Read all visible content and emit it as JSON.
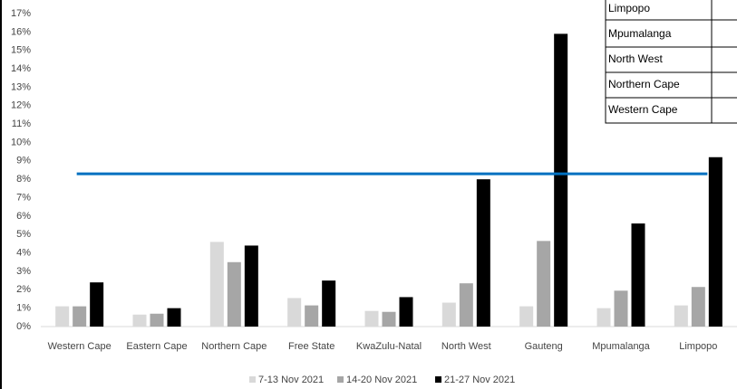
{
  "chart_data": {
    "type": "bar",
    "categories": [
      "Western Cape",
      "Eastern Cape",
      "Northern Cape",
      "Free State",
      "KwaZulu-Natal",
      "North West",
      "Gauteng",
      "Mpumalanga",
      "Limpopo"
    ],
    "series": [
      {
        "name": "7-13 Nov 2021",
        "color": "#d9d9d9",
        "values": [
          1.1,
          0.65,
          4.6,
          1.55,
          0.85,
          1.3,
          1.1,
          1.0,
          1.15
        ]
      },
      {
        "name": "14-20 Nov 2021",
        "color": "#a6a6a6",
        "values": [
          1.1,
          0.7,
          3.5,
          1.15,
          0.8,
          2.35,
          4.65,
          1.95,
          2.15
        ]
      },
      {
        "name": "21-27 Nov 2021",
        "color": "#000000",
        "values": [
          2.4,
          1.0,
          4.4,
          2.5,
          1.6,
          8.0,
          15.9,
          5.6,
          9.2
        ]
      }
    ],
    "reference_line": {
      "value": 8.3,
      "color": "#0070c0"
    },
    "ylim": [
      0,
      17
    ],
    "yticks": [
      {
        "value": 0,
        "label": "0%"
      },
      {
        "value": 1,
        "label": "1%"
      },
      {
        "value": 2,
        "label": "2%"
      },
      {
        "value": 3,
        "label": "3%"
      },
      {
        "value": 4,
        "label": "4%"
      },
      {
        "value": 5,
        "label": "5%"
      },
      {
        "value": 6,
        "label": "6%"
      },
      {
        "value": 7,
        "label": "7%"
      },
      {
        "value": 8,
        "label": "8%"
      },
      {
        "value": 9,
        "label": "9%"
      },
      {
        "value": 10,
        "label": "10%"
      },
      {
        "value": 11,
        "label": "11%"
      },
      {
        "value": 12,
        "label": "12%"
      },
      {
        "value": 13,
        "label": "13%"
      },
      {
        "value": 14,
        "label": "14%"
      },
      {
        "value": 15,
        "label": "15%"
      },
      {
        "value": 16,
        "label": "16%"
      },
      {
        "value": 17,
        "label": "17%"
      }
    ],
    "grid": false
  },
  "table": {
    "rows": [
      "Limpopo",
      "Mpumalanga",
      "North West",
      "Northern Cape",
      "Western Cape"
    ]
  }
}
